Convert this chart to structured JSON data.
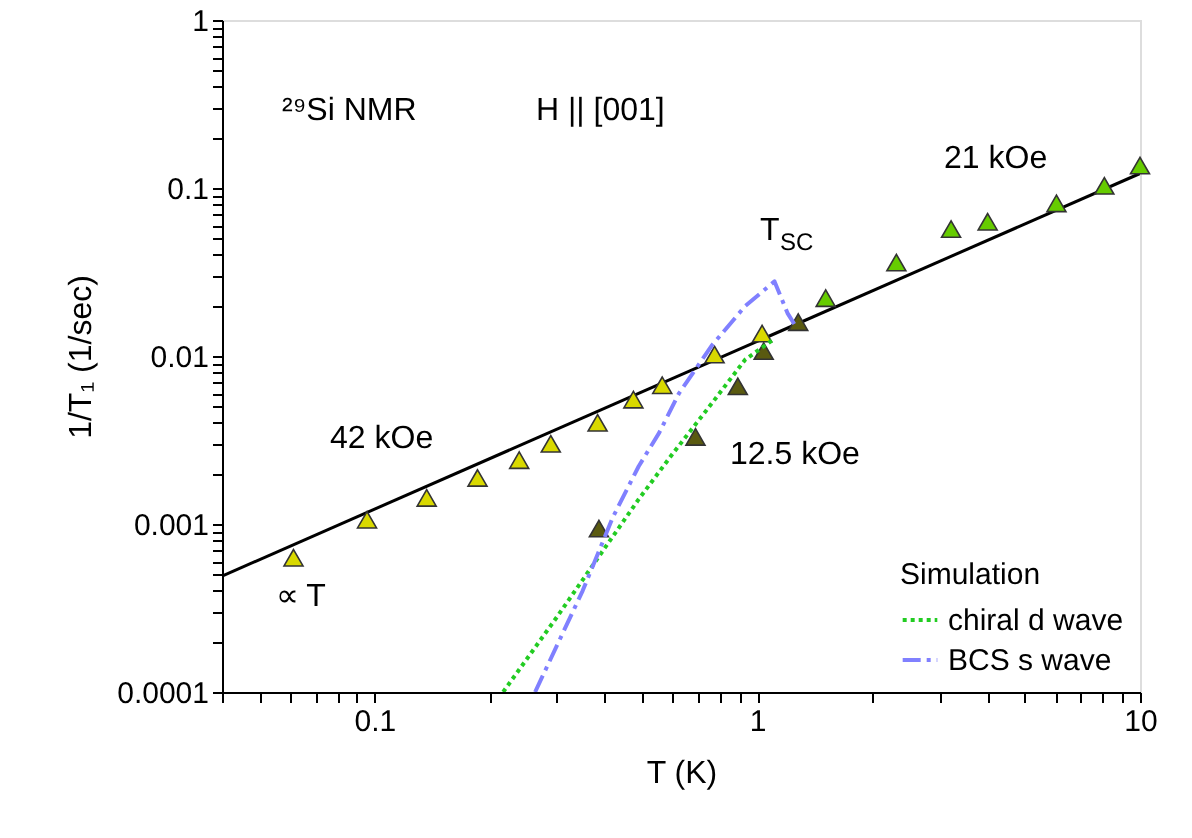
{
  "chart_data": {
    "type": "scatter",
    "xlabel": "T (K)",
    "ylabel": "1/T₁ (1/sec)",
    "legend_title": "Simulation",
    "legend": "bottom right",
    "log": "xy",
    "xlim": [
      0.04,
      10
    ],
    "ylim": [
      0.0001,
      1
    ],
    "xticks": [
      {
        "value": 0.04,
        "label": null
      },
      {
        "value": 0.05,
        "label": null
      },
      {
        "value": 0.06,
        "label": null
      },
      {
        "value": 0.07,
        "label": null
      },
      {
        "value": 0.08,
        "label": null
      },
      {
        "value": 0.09,
        "label": null
      },
      0.1,
      {
        "value": 0.2,
        "label": null
      },
      {
        "value": 0.3,
        "label": null
      },
      {
        "value": 0.4,
        "label": null
      },
      {
        "value": 0.5,
        "label": null
      },
      {
        "value": 0.6,
        "label": null
      },
      {
        "value": 0.7,
        "label": null
      },
      {
        "value": 0.8,
        "label": null
      },
      {
        "value": 0.9,
        "label": null
      },
      1,
      {
        "value": 2,
        "label": null
      },
      {
        "value": 3,
        "label": null
      },
      {
        "value": 4,
        "label": null
      },
      {
        "value": 5,
        "label": null
      },
      {
        "value": 6,
        "label": null
      },
      {
        "value": 7,
        "label": null
      },
      {
        "value": 8,
        "label": null
      },
      {
        "value": 9,
        "label": null
      },
      10
    ],
    "yticks": [
      0.0001,
      {
        "value": 0.0002,
        "label": null
      },
      {
        "value": 0.0003,
        "label": null
      },
      {
        "value": 0.0004,
        "label": null
      },
      {
        "value": 0.0005,
        "label": null
      },
      {
        "value": 0.0006,
        "label": null
      },
      {
        "value": 0.0007,
        "label": null
      },
      {
        "value": 0.0008,
        "label": null
      },
      {
        "value": 0.0009,
        "label": null
      },
      0.001,
      {
        "value": 0.002,
        "label": null
      },
      {
        "value": 0.003,
        "label": null
      },
      {
        "value": 0.004,
        "label": null
      },
      {
        "value": 0.005,
        "label": null
      },
      {
        "value": 0.006,
        "label": null
      },
      {
        "value": 0.007,
        "label": null
      },
      {
        "value": 0.008,
        "label": null
      },
      {
        "value": 0.009,
        "label": null
      },
      0.01,
      {
        "value": 0.02,
        "label": null
      },
      {
        "value": 0.03,
        "label": null
      },
      {
        "value": 0.04,
        "label": null
      },
      {
        "value": 0.05,
        "label": null
      },
      {
        "value": 0.06,
        "label": null
      },
      {
        "value": 0.07,
        "label": null
      },
      {
        "value": 0.08,
        "label": null
      },
      {
        "value": 0.09,
        "label": null
      },
      0.1,
      {
        "value": 0.2,
        "label": null
      },
      {
        "value": 0.3,
        "label": null
      },
      {
        "value": 0.4,
        "label": null
      },
      {
        "value": 0.5,
        "label": null
      },
      {
        "value": 0.6,
        "label": null
      },
      {
        "value": 0.7,
        "label": null
      },
      {
        "value": 0.8,
        "label": null
      },
      {
        "value": 0.9,
        "label": null
      },
      1
    ],
    "series": [
      {
        "type": "line",
        "color": "#000000",
        "line_style": "solid",
        "marker": "none",
        "x": [
          0.04,
          10
        ],
        "values": [
          0.00049,
          0.122
        ]
      },
      {
        "name": "chiral d wave",
        "type": "line",
        "color": "#22cc22",
        "line_style": "dotted",
        "marker": "none",
        "x": [
          0.217,
          0.3,
          0.4,
          0.49,
          0.6,
          0.75,
          0.93,
          1.1
        ],
        "values": [
          0.0001,
          0.00028,
          0.00072,
          0.0014,
          0.0026,
          0.005,
          0.0095,
          0.0125
        ]
      },
      {
        "name": "BCS s wave",
        "type": "line",
        "color": "#8080ff",
        "line_style": "dashed",
        "marker": "none",
        "x": [
          0.263,
          0.35,
          0.42,
          0.49,
          0.555,
          0.625,
          0.76,
          0.93,
          1.11,
          1.2,
          1.25
        ],
        "values": [
          0.0001,
          0.0004,
          0.0011,
          0.0022,
          0.0035,
          0.006,
          0.0115,
          0.0198,
          0.0278,
          0.018,
          0.0155
        ]
      },
      {
        "color": "#d9d900",
        "marker": "triangle",
        "x": [
          0.0615,
          0.0957,
          0.137,
          0.186,
          0.239,
          0.289,
          0.383,
          0.475,
          0.565,
          0.774,
          1.03
        ],
        "values": [
          0.00063,
          0.00106,
          0.00143,
          0.00188,
          0.0024,
          0.003,
          0.004,
          0.0055,
          0.0067,
          0.0102,
          0.0136
        ]
      },
      {
        "color": "#5a5a10",
        "marker": "triangle",
        "x": [
          0.386,
          0.69,
          0.89,
          1.04,
          1.28
        ],
        "values": [
          0.00094,
          0.0033,
          0.0066,
          0.0107,
          0.0159
        ]
      },
      {
        "color": "#66cc00",
        "marker": "triangle",
        "x": [
          1.51,
          2.31,
          3.21,
          4.0,
          6.05,
          8.07,
          10
        ],
        "values": [
          0.0221,
          0.036,
          0.057,
          0.063,
          0.081,
          0.103,
          0.136
        ]
      }
    ],
    "annotations": [
      "²⁹Si NMR",
      "H || [001]",
      "42 kOe",
      "12.5 kOe",
      "21 kOe",
      "T$_{SC}$",
      "∝ T"
    ]
  }
}
